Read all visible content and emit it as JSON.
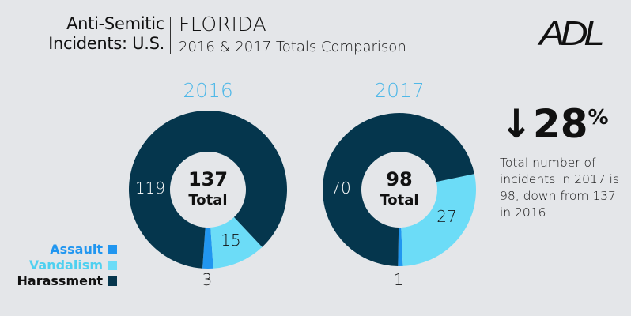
{
  "header": {
    "title_line1": "Anti-Semitic",
    "title_line2": "Incidents: U.S.",
    "state": "FLORIDA",
    "subtitle": "2016 & 2017 Totals Comparison",
    "logo": "ADL"
  },
  "colors": {
    "assault": "#2196f0",
    "vandalism": "#6cdcf7",
    "harassment": "#05364d",
    "year": "#4fb8e8"
  },
  "legend": [
    {
      "label": "Assault",
      "color": "#2196f0"
    },
    {
      "label": "Vandalism",
      "color": "#6cdcf7"
    },
    {
      "label": "Harassment",
      "color": "#05364d"
    }
  ],
  "chart_data": [
    {
      "type": "pie",
      "title": "2016",
      "categories": [
        "Assault",
        "Vandalism",
        "Harassment"
      ],
      "values": [
        3,
        15,
        119
      ],
      "total": 137,
      "total_label": "Total"
    },
    {
      "type": "pie",
      "title": "2017",
      "categories": [
        "Assault",
        "Vandalism",
        "Harassment"
      ],
      "values": [
        1,
        27,
        70
      ],
      "total": 98,
      "total_label": "Total"
    }
  ],
  "summary": {
    "arrow_icon": "arrow-down-icon",
    "percent": "28",
    "percent_sign": "%",
    "note": "Total number of incidents in 2017 is 98, down from 137 in 2016."
  }
}
